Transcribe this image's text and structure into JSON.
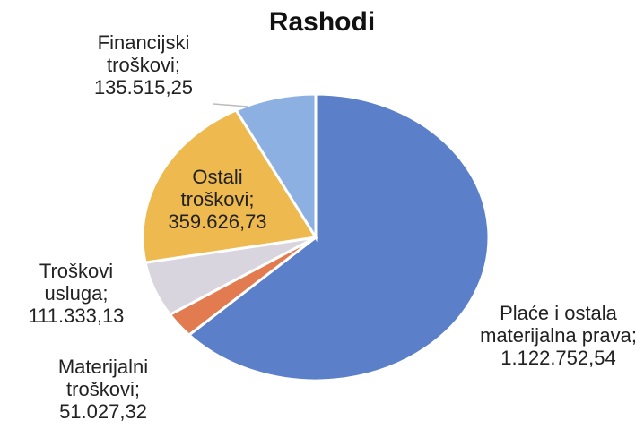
{
  "chart_data": {
    "type": "pie",
    "title": "Rashodi",
    "categories": [
      "Plaće i ostala materijalna prava",
      "Materijalni troškovi",
      "Troškovi usluga",
      "Ostali troškovi",
      "Financijski troškovi"
    ],
    "values": [
      1122752.54,
      51027.32,
      111333.13,
      359626.73,
      135515.25
    ],
    "value_labels": [
      "1.122.752,54",
      "51.027,32",
      "111.333,13",
      "359.626,73",
      "135.515,25"
    ],
    "label_separator": ";",
    "colors": [
      "#5b7fc9",
      "#e27b50",
      "#d9d5df",
      "#eeb94f",
      "#8db0e2"
    ]
  }
}
